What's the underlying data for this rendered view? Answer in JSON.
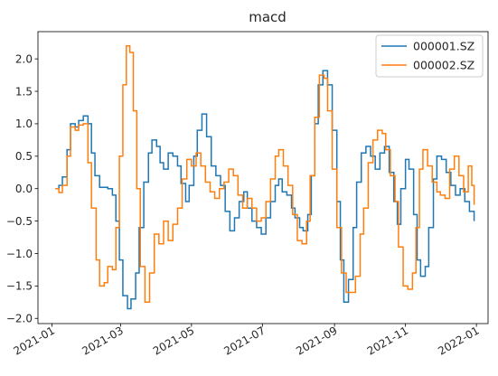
{
  "chart_data": {
    "type": "line",
    "title": "macd",
    "xlabel": "",
    "ylabel": "",
    "xlim": [
      "2020-12-20",
      "2022-01-11"
    ],
    "ylim": [
      -2.08,
      2.42
    ],
    "x_ticks": [
      "2021-01",
      "2021-03",
      "2021-05",
      "2021-07",
      "2021-09",
      "2021-11",
      "2022-01"
    ],
    "y_ticks": [
      "−2.0",
      "−1.5",
      "−1.0",
      "−0.5",
      "0.0",
      "0.5",
      "1.0",
      "1.5",
      "2.0"
    ],
    "y_tick_values": [
      -2.0,
      -1.5,
      -1.0,
      -0.5,
      0.0,
      0.5,
      1.0,
      1.5,
      2.0
    ],
    "grid": false,
    "legend_position": "top-right",
    "series": [
      {
        "name": "000001.SZ",
        "color": "#1f77b4",
        "points": [
          [
            "2021-01-04",
            0.0
          ],
          [
            "2021-01-07",
            0.05
          ],
          [
            "2021-01-10",
            0.18
          ],
          [
            "2021-01-14",
            0.6
          ],
          [
            "2021-01-17",
            1.0
          ],
          [
            "2021-01-21",
            0.95
          ],
          [
            "2021-01-24",
            1.05
          ],
          [
            "2021-01-28",
            1.12
          ],
          [
            "2021-02-01",
            1.0
          ],
          [
            "2021-02-04",
            0.55
          ],
          [
            "2021-02-07",
            0.2
          ],
          [
            "2021-02-11",
            0.02
          ],
          [
            "2021-02-18",
            0.0
          ],
          [
            "2021-02-22",
            -0.1
          ],
          [
            "2021-02-25",
            -0.5
          ],
          [
            "2021-02-28",
            -1.1
          ],
          [
            "2021-03-03",
            -1.65
          ],
          [
            "2021-03-07",
            -1.85
          ],
          [
            "2021-03-10",
            -1.7
          ],
          [
            "2021-03-14",
            -1.3
          ],
          [
            "2021-03-17",
            -0.6
          ],
          [
            "2021-03-21",
            0.1
          ],
          [
            "2021-03-25",
            0.55
          ],
          [
            "2021-03-28",
            0.75
          ],
          [
            "2021-04-01",
            0.65
          ],
          [
            "2021-04-04",
            0.4
          ],
          [
            "2021-04-07",
            0.3
          ],
          [
            "2021-04-11",
            0.55
          ],
          [
            "2021-04-15",
            0.5
          ],
          [
            "2021-04-19",
            0.35
          ],
          [
            "2021-04-22",
            0.08
          ],
          [
            "2021-04-26",
            -0.2
          ],
          [
            "2021-04-29",
            0.05
          ],
          [
            "2021-05-03",
            0.5
          ],
          [
            "2021-05-06",
            0.9
          ],
          [
            "2021-05-10",
            1.15
          ],
          [
            "2021-05-14",
            0.8
          ],
          [
            "2021-05-18",
            0.35
          ],
          [
            "2021-05-22",
            0.2
          ],
          [
            "2021-05-26",
            0.05
          ],
          [
            "2021-05-30",
            -0.35
          ],
          [
            "2021-06-03",
            -0.65
          ],
          [
            "2021-06-07",
            -0.45
          ],
          [
            "2021-06-11",
            -0.2
          ],
          [
            "2021-06-15",
            -0.05
          ],
          [
            "2021-06-18",
            -0.3
          ],
          [
            "2021-06-22",
            -0.5
          ],
          [
            "2021-06-26",
            -0.6
          ],
          [
            "2021-06-30",
            -0.7
          ],
          [
            "2021-07-04",
            -0.45
          ],
          [
            "2021-07-08",
            -0.2
          ],
          [
            "2021-07-12",
            0.05
          ],
          [
            "2021-07-15",
            0.15
          ],
          [
            "2021-07-18",
            -0.05
          ],
          [
            "2021-07-22",
            -0.1
          ],
          [
            "2021-07-26",
            -0.3
          ],
          [
            "2021-07-29",
            -0.45
          ],
          [
            "2021-08-02",
            -0.6
          ],
          [
            "2021-08-05",
            -0.65
          ],
          [
            "2021-08-09",
            -0.4
          ],
          [
            "2021-08-12",
            0.2
          ],
          [
            "2021-08-15",
            1.0
          ],
          [
            "2021-08-18",
            1.6
          ],
          [
            "2021-08-22",
            1.82
          ],
          [
            "2021-08-26",
            1.6
          ],
          [
            "2021-08-30",
            0.9
          ],
          [
            "2021-09-03",
            -0.2
          ],
          [
            "2021-09-06",
            -1.1
          ],
          [
            "2021-09-09",
            -1.75
          ],
          [
            "2021-09-13",
            -1.4
          ],
          [
            "2021-09-17",
            -0.6
          ],
          [
            "2021-09-20",
            0.1
          ],
          [
            "2021-09-24",
            0.55
          ],
          [
            "2021-09-28",
            0.65
          ],
          [
            "2021-10-02",
            0.5
          ],
          [
            "2021-10-06",
            0.3
          ],
          [
            "2021-10-10",
            0.55
          ],
          [
            "2021-10-14",
            0.65
          ],
          [
            "2021-10-18",
            0.25
          ],
          [
            "2021-10-22",
            -0.2
          ],
          [
            "2021-10-25",
            -0.55
          ],
          [
            "2021-10-28",
            0.0
          ],
          [
            "2021-11-01",
            0.45
          ],
          [
            "2021-11-04",
            0.3
          ],
          [
            "2021-11-08",
            -0.4
          ],
          [
            "2021-11-11",
            -1.1
          ],
          [
            "2021-11-14",
            -1.35
          ],
          [
            "2021-11-18",
            -1.2
          ],
          [
            "2021-11-21",
            -0.6
          ],
          [
            "2021-11-25",
            0.15
          ],
          [
            "2021-11-28",
            0.5
          ],
          [
            "2021-12-02",
            0.45
          ],
          [
            "2021-12-06",
            0.25
          ],
          [
            "2021-12-10",
            0.05
          ],
          [
            "2021-12-14",
            -0.1
          ],
          [
            "2021-12-18",
            0.0
          ],
          [
            "2021-12-22",
            -0.2
          ],
          [
            "2021-12-26",
            -0.35
          ],
          [
            "2021-12-30",
            -0.5
          ]
        ]
      },
      {
        "name": "000002.SZ",
        "color": "#ff7f0e",
        "points": [
          [
            "2021-01-04",
            0.0
          ],
          [
            "2021-01-07",
            -0.06
          ],
          [
            "2021-01-10",
            0.05
          ],
          [
            "2021-01-14",
            0.5
          ],
          [
            "2021-01-17",
            0.95
          ],
          [
            "2021-01-21",
            0.9
          ],
          [
            "2021-01-24",
            0.98
          ],
          [
            "2021-01-28",
            1.0
          ],
          [
            "2021-02-01",
            0.4
          ],
          [
            "2021-02-04",
            -0.3
          ],
          [
            "2021-02-08",
            -1.1
          ],
          [
            "2021-02-11",
            -1.5
          ],
          [
            "2021-02-15",
            -1.45
          ],
          [
            "2021-02-18",
            -1.2
          ],
          [
            "2021-02-22",
            -1.25
          ],
          [
            "2021-02-25",
            -0.6
          ],
          [
            "2021-02-28",
            0.5
          ],
          [
            "2021-03-03",
            1.6
          ],
          [
            "2021-03-06",
            2.2
          ],
          [
            "2021-03-09",
            2.1
          ],
          [
            "2021-03-12",
            1.2
          ],
          [
            "2021-03-15",
            0.0
          ],
          [
            "2021-03-18",
            -1.2
          ],
          [
            "2021-03-22",
            -1.75
          ],
          [
            "2021-03-26",
            -1.3
          ],
          [
            "2021-03-30",
            -0.7
          ],
          [
            "2021-04-03",
            -0.85
          ],
          [
            "2021-04-07",
            -0.5
          ],
          [
            "2021-04-11",
            -0.8
          ],
          [
            "2021-04-15",
            -0.55
          ],
          [
            "2021-04-19",
            -0.3
          ],
          [
            "2021-04-23",
            0.15
          ],
          [
            "2021-04-27",
            0.45
          ],
          [
            "2021-05-01",
            0.35
          ],
          [
            "2021-05-05",
            0.55
          ],
          [
            "2021-05-09",
            0.35
          ],
          [
            "2021-05-13",
            0.1
          ],
          [
            "2021-05-17",
            -0.05
          ],
          [
            "2021-05-21",
            -0.15
          ],
          [
            "2021-05-25",
            0.0
          ],
          [
            "2021-05-29",
            0.1
          ],
          [
            "2021-06-02",
            0.3
          ],
          [
            "2021-06-06",
            0.2
          ],
          [
            "2021-06-10",
            -0.1
          ],
          [
            "2021-06-14",
            -0.3
          ],
          [
            "2021-06-18",
            -0.15
          ],
          [
            "2021-06-22",
            -0.3
          ],
          [
            "2021-06-26",
            -0.5
          ],
          [
            "2021-06-30",
            -0.45
          ],
          [
            "2021-07-04",
            -0.2
          ],
          [
            "2021-07-08",
            0.15
          ],
          [
            "2021-07-12",
            0.5
          ],
          [
            "2021-07-15",
            0.6
          ],
          [
            "2021-07-19",
            0.35
          ],
          [
            "2021-07-23",
            0.05
          ],
          [
            "2021-07-27",
            -0.4
          ],
          [
            "2021-07-31",
            -0.8
          ],
          [
            "2021-08-04",
            -0.85
          ],
          [
            "2021-08-08",
            -0.5
          ],
          [
            "2021-08-11",
            0.2
          ],
          [
            "2021-08-15",
            1.1
          ],
          [
            "2021-08-19",
            1.75
          ],
          [
            "2021-08-23",
            1.7
          ],
          [
            "2021-08-26",
            1.2
          ],
          [
            "2021-08-30",
            0.3
          ],
          [
            "2021-09-03",
            -0.6
          ],
          [
            "2021-09-07",
            -1.3
          ],
          [
            "2021-09-11",
            -1.6
          ],
          [
            "2021-09-15",
            -1.6
          ],
          [
            "2021-09-19",
            -1.35
          ],
          [
            "2021-09-23",
            -0.7
          ],
          [
            "2021-09-26",
            -0.3
          ],
          [
            "2021-09-30",
            0.4
          ],
          [
            "2021-10-04",
            0.75
          ],
          [
            "2021-10-08",
            0.9
          ],
          [
            "2021-10-12",
            0.85
          ],
          [
            "2021-10-15",
            0.6
          ],
          [
            "2021-10-19",
            0.2
          ],
          [
            "2021-10-23",
            -0.2
          ],
          [
            "2021-10-26",
            -0.9
          ],
          [
            "2021-10-30",
            -1.5
          ],
          [
            "2021-11-03",
            -1.55
          ],
          [
            "2021-11-07",
            -1.3
          ],
          [
            "2021-11-10",
            -0.6
          ],
          [
            "2021-11-13",
            0.3
          ],
          [
            "2021-11-16",
            0.6
          ],
          [
            "2021-11-20",
            0.35
          ],
          [
            "2021-11-24",
            0.1
          ],
          [
            "2021-11-28",
            -0.05
          ],
          [
            "2021-12-01",
            -0.1
          ],
          [
            "2021-12-05",
            -0.15
          ],
          [
            "2021-12-09",
            0.3
          ],
          [
            "2021-12-13",
            0.5
          ],
          [
            "2021-12-17",
            0.2
          ],
          [
            "2021-12-21",
            -0.05
          ],
          [
            "2021-12-25",
            0.35
          ],
          [
            "2021-12-28",
            0.05
          ],
          [
            "2021-12-30",
            -0.25
          ]
        ]
      }
    ]
  }
}
